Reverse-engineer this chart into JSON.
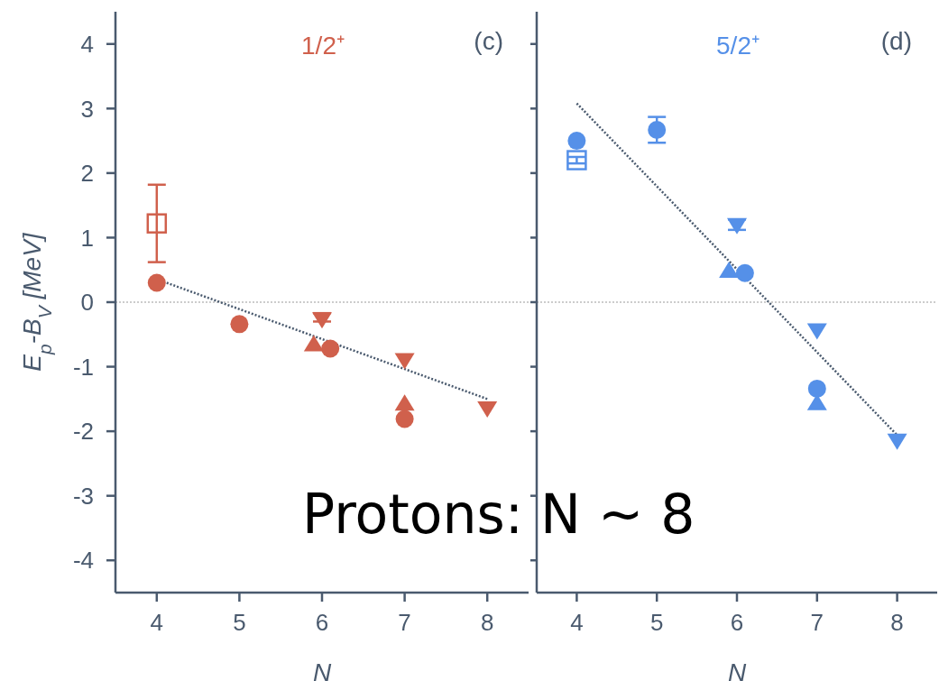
{
  "chart_data": [
    {
      "type": "scatter",
      "title": "1/2⁺",
      "annotations": [
        "(c)",
        "Protons: N ~ 8"
      ],
      "xlabel": "N",
      "ylabel": "E$_{p}$-B$_{V}$ [MeV]",
      "xlim": [
        3.5,
        8.5
      ],
      "xticks": [
        4,
        5,
        6,
        7,
        8
      ],
      "ylim": [
        -4.5,
        4.5
      ],
      "yticks": [
        -4,
        -3,
        -2,
        -1,
        0,
        1,
        2,
        3,
        4
      ],
      "grid": false,
      "legend": false,
      "ref_lines": [
        {
          "axis": "y",
          "value": 0,
          "color": "#cccccc",
          "line_style": "dotted"
        }
      ],
      "series": [
        {
          "type": "line",
          "color": "#4a5a6e",
          "line_style": "dotted",
          "marker": "none",
          "x": [
            4.12,
            8
          ],
          "values": [
            0.3,
            -1.5
          ]
        },
        {
          "color": "#d0604c",
          "marker": "square",
          "x": [
            4
          ],
          "values": [
            1.22
          ],
          "errors": [
            0.6
          ]
        },
        {
          "color": "#d0604c",
          "marker": "circle",
          "x": [
            4,
            5,
            6.1,
            7
          ],
          "values": [
            0.3,
            -0.34,
            -0.72,
            -1.81
          ]
        },
        {
          "color": "#d0604c",
          "marker": "triangle",
          "x": [
            5.9,
            7
          ],
          "values": [
            -0.65,
            -1.57
          ]
        },
        {
          "color": "#d0604c",
          "marker": "triangle-down",
          "x": [
            6,
            7,
            8
          ],
          "values": [
            -0.27,
            -0.9,
            -1.65
          ],
          "errors": [
            [
              -0.3,
              -0.17
            ],
            null,
            null
          ]
        }
      ]
    },
    {
      "type": "scatter",
      "title": "5/2⁺",
      "annotations": [
        "(d)"
      ],
      "xlabel": "N",
      "xlim": [
        3.5,
        8.5
      ],
      "xticks": [
        4,
        5,
        6,
        7,
        8
      ],
      "ylim": [
        -4.5,
        4.5
      ],
      "yticks": [
        -4,
        -3,
        -2,
        -1,
        0,
        1,
        2,
        3,
        4
      ],
      "tick_labels": "x",
      "grid": false,
      "legend": false,
      "ref_lines": [
        {
          "axis": "y",
          "value": 0,
          "color": "#cccccc",
          "line_style": "dotted"
        }
      ],
      "series": [
        {
          "type": "line",
          "color": "#4a5a6e",
          "line_style": "dotted",
          "marker": "none",
          "x": [
            4,
            8
          ],
          "values": [
            3.08,
            -2.06
          ]
        },
        {
          "color": "#5590e8",
          "marker": "square",
          "x": [
            4
          ],
          "values": [
            2.2
          ],
          "errors": [
            0.05
          ]
        },
        {
          "color": "#5590e8",
          "marker": "circle",
          "x": [
            4,
            5,
            6.1,
            7
          ],
          "values": [
            2.5,
            2.67,
            0.45,
            -1.34
          ],
          "errors": [
            null,
            0.2,
            null,
            null
          ]
        },
        {
          "color": "#5590e8",
          "marker": "triangle",
          "x": [
            5.9,
            7
          ],
          "values": [
            0.49,
            -1.56
          ]
        },
        {
          "color": "#5590e8",
          "marker": "triangle-down",
          "x": [
            6,
            7,
            8
          ],
          "values": [
            1.19,
            -0.44,
            -2.15
          ],
          "errors": [
            [
              1.12,
              1.28
            ],
            null,
            null
          ]
        }
      ]
    }
  ]
}
